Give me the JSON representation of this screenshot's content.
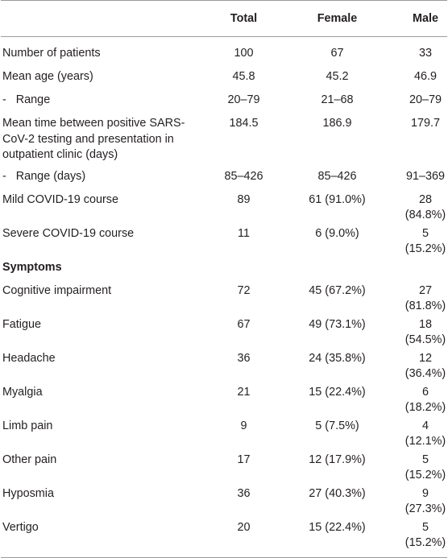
{
  "header": {
    "col0": "",
    "col1": "Total",
    "col2": "Female",
    "col3": "Male"
  },
  "rows": [
    {
      "label": "Number of patients",
      "total": "100",
      "female": "67",
      "male": "33"
    },
    {
      "label": "Mean age (years)",
      "total": "45.8",
      "female": "45.2",
      "male": "46.9"
    },
    {
      "label": "-   Range",
      "total": "20–79",
      "female": "21–68",
      "male": "20–79"
    },
    {
      "label": "Mean time between positive SARS-CoV-2 testing and presentation in outpatient clinic (days)",
      "total": "184.5",
      "female": "186.9",
      "male": "179.7"
    },
    {
      "label": "-   Range (days)",
      "total": "85–426",
      "female": "85–426",
      "male": "91–369"
    },
    {
      "label": "Mild COVID-19 course",
      "total": "89",
      "female": "61 (91.0%)",
      "male": "28 (84.8%)"
    },
    {
      "label": "Severe COVID-19 course",
      "total": "11",
      "female": "6 (9.0%)",
      "male": "5 (15.2%)"
    },
    {
      "label": "Symptoms",
      "total": "",
      "female": "",
      "male": ""
    },
    {
      "label": "Cognitive impairment",
      "total": "72",
      "female": "45 (67.2%)",
      "male": "27 (81.8%)"
    },
    {
      "label": "Fatigue",
      "total": "67",
      "female": "49 (73.1%)",
      "male": "18 (54.5%)"
    },
    {
      "label": "Headache",
      "total": "36",
      "female": "24 (35.8%)",
      "male": "12 (36.4%)"
    },
    {
      "label": "Myalgia",
      "total": "21",
      "female": "15 (22.4%)",
      "male": "6 (18.2%)"
    },
    {
      "label": "Limb pain",
      "total": "9",
      "female": "5 (7.5%)",
      "male": "4 (12.1%)"
    },
    {
      "label": "Other pain",
      "total": "17",
      "female": "12 (17.9%)",
      "male": "5 (15.2%)"
    },
    {
      "label": "Hyposmia",
      "total": "36",
      "female": "27 (40.3%)",
      "male": "9 (27.3%)"
    },
    {
      "label": "Vertigo",
      "total": "20",
      "female": "15 (22.4%)",
      "male": "5 (15.2%)"
    }
  ]
}
